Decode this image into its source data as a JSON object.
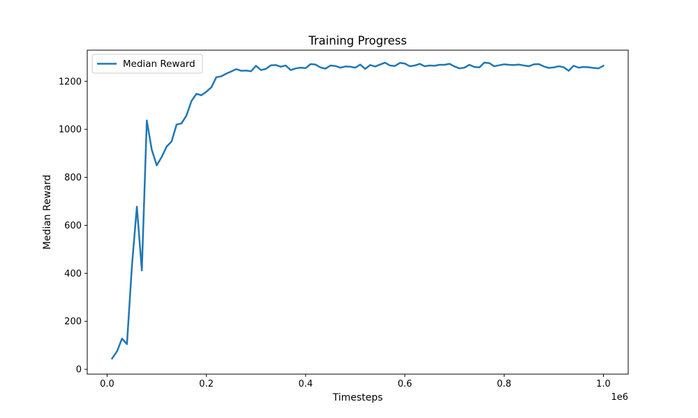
{
  "chart_data": {
    "type": "line",
    "title": "Training Progress",
    "xlabel": "Timesteps",
    "ylabel": "Median Reward",
    "x_offset_label": "1e6",
    "xlim": [
      -0.04,
      1.05
    ],
    "ylim": [
      -20,
      1330
    ],
    "x_ticks": [
      0.0,
      0.2,
      0.4,
      0.6,
      0.8,
      1.0
    ],
    "x_tick_labels": [
      "0.0",
      "0.2",
      "0.4",
      "0.6",
      "0.8",
      "1.0"
    ],
    "y_ticks": [
      0,
      200,
      400,
      600,
      800,
      1000,
      1200
    ],
    "y_tick_labels": [
      "0",
      "200",
      "400",
      "600",
      "800",
      "1000",
      "1200"
    ],
    "grid": false,
    "legend_position": "upper-left",
    "series": [
      {
        "name": "Median Reward",
        "color": "#1f77b4",
        "x": [
          0.01,
          0.02,
          0.03,
          0.04,
          0.05,
          0.06,
          0.07,
          0.08,
          0.09,
          0.1,
          0.11,
          0.12,
          0.13,
          0.14,
          0.15,
          0.16,
          0.17,
          0.18,
          0.19,
          0.2,
          0.21,
          0.22,
          0.23,
          0.24,
          0.25,
          0.26,
          0.27,
          0.28,
          0.29,
          0.3,
          0.31,
          0.32,
          0.33,
          0.34,
          0.35,
          0.36,
          0.37,
          0.38,
          0.39,
          0.4,
          0.41,
          0.42,
          0.43,
          0.44,
          0.45,
          0.46,
          0.47,
          0.48,
          0.49,
          0.5,
          0.51,
          0.52,
          0.53,
          0.54,
          0.55,
          0.56,
          0.57,
          0.58,
          0.59,
          0.6,
          0.61,
          0.62,
          0.63,
          0.64,
          0.65,
          0.66,
          0.67,
          0.68,
          0.69,
          0.7,
          0.71,
          0.72,
          0.73,
          0.74,
          0.75,
          0.76,
          0.77,
          0.78,
          0.79,
          0.8,
          0.81,
          0.82,
          0.83,
          0.84,
          0.85,
          0.86,
          0.87,
          0.88,
          0.89,
          0.9,
          0.91,
          0.92,
          0.93,
          0.94,
          0.95,
          0.96,
          0.97,
          0.98,
          0.99,
          1.0
        ],
        "y": [
          45,
          75,
          128,
          105,
          430,
          678,
          412,
          1037,
          915,
          850,
          885,
          928,
          950,
          1020,
          1025,
          1058,
          1118,
          1148,
          1142,
          1157,
          1175,
          1217,
          1221,
          1232,
          1241,
          1251,
          1244,
          1245,
          1242,
          1265,
          1247,
          1252,
          1267,
          1268,
          1261,
          1266,
          1247,
          1254,
          1257,
          1255,
          1272,
          1270,
          1258,
          1253,
          1266,
          1264,
          1257,
          1262,
          1261,
          1257,
          1270,
          1252,
          1268,
          1262,
          1270,
          1278,
          1266,
          1264,
          1277,
          1274,
          1263,
          1266,
          1273,
          1263,
          1266,
          1265,
          1269,
          1269,
          1273,
          1262,
          1254,
          1257,
          1269,
          1260,
          1258,
          1278,
          1276,
          1263,
          1267,
          1271,
          1269,
          1268,
          1270,
          1266,
          1263,
          1271,
          1272,
          1262,
          1256,
          1258,
          1263,
          1259,
          1244,
          1265,
          1257,
          1260,
          1259,
          1256,
          1254,
          1265
        ]
      }
    ]
  }
}
